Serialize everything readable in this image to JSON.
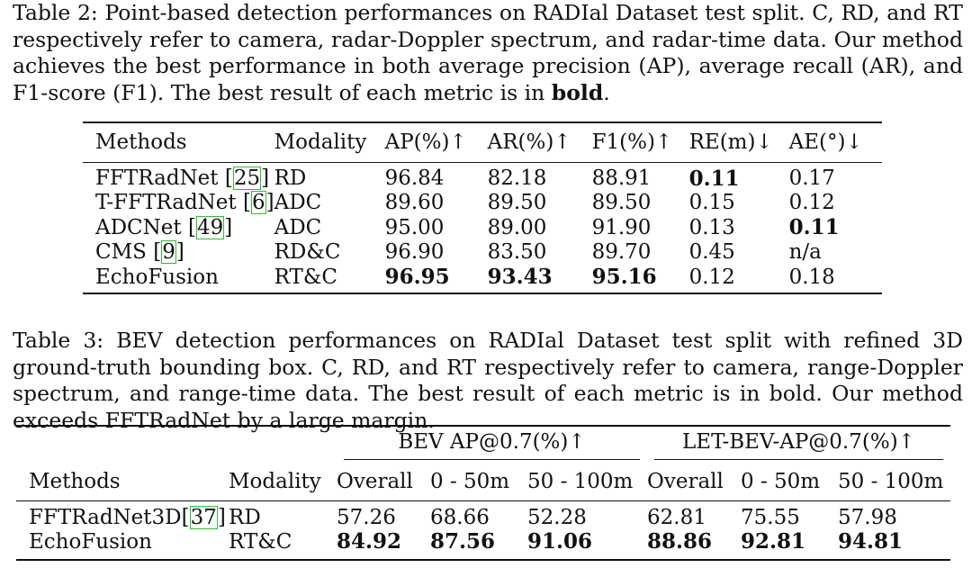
{
  "table2": {
    "caption_label": "Table 2:",
    "caption_pre": "Point-based detection performances on RADIal Dataset test split. C, RD, and RT respectively refer to camera, radar-Doppler spectrum, and radar-time data. Our method achieves the best performance in both average precision (AP), average recall (AR), and F1-score (F1). The best result of each metric is in ",
    "caption_bold": "bold",
    "caption_post": ".",
    "headers": [
      "Methods",
      "Modality",
      "AP(%)↑",
      "AR(%)↑",
      "F1(%)↑",
      "RE(m)↓",
      "AE(°)↓"
    ],
    "rows": [
      {
        "method": "FFTRadNet ",
        "ref": "25",
        "cells": [
          "RD",
          "96.84",
          "82.18",
          "88.91",
          "0.11",
          "0.17"
        ]
      },
      {
        "method": "T-FFTRadNet ",
        "ref": "6",
        "cells": [
          "ADC",
          "89.60",
          "89.50",
          "89.50",
          "0.15",
          "0.12"
        ]
      },
      {
        "method": "ADCNet ",
        "ref": "49",
        "cells": [
          "ADC",
          "95.00",
          "89.00",
          "91.90",
          "0.13",
          "0.11"
        ]
      },
      {
        "method": "CMS ",
        "ref": "9",
        "cells": [
          "RD&C",
          "96.90",
          "83.50",
          "89.70",
          "0.45",
          "n/a"
        ]
      },
      {
        "method": "EchoFusion",
        "ref": "",
        "cells": [
          "RT&C",
          "96.95",
          "93.43",
          "95.16",
          "0.12",
          "0.18"
        ]
      }
    ]
  },
  "table3": {
    "caption_label": "Table 3:",
    "caption": "BEV detection performances on RADIal Dataset test split with refined 3D ground-truth bounding box. C, RD, and RT respectively refer to camera, range-Doppler spectrum, and range-time data. The best result of each metric is in bold. Our method exceeds FFTRadNet by a large margin.",
    "group_headers": [
      "BEV AP@0.7(%)↑",
      "LET-BEV-AP@0.7(%)↑"
    ],
    "headers": [
      "Methods",
      "Modality",
      "Overall",
      "0 - 50m",
      "50 - 100m",
      "Overall",
      "0 - 50m",
      "50 - 100m"
    ],
    "rows": [
      {
        "method": "FFTRadNet3D",
        "ref": "37",
        "cells": [
          "RD",
          "57.26",
          "68.66",
          "52.28",
          "62.81",
          "75.55",
          "57.98"
        ]
      },
      {
        "method": "EchoFusion",
        "ref": "",
        "cells": [
          "RT&C",
          "84.92",
          "87.56",
          "91.06",
          "88.86",
          "92.81",
          "94.81"
        ]
      }
    ]
  }
}
